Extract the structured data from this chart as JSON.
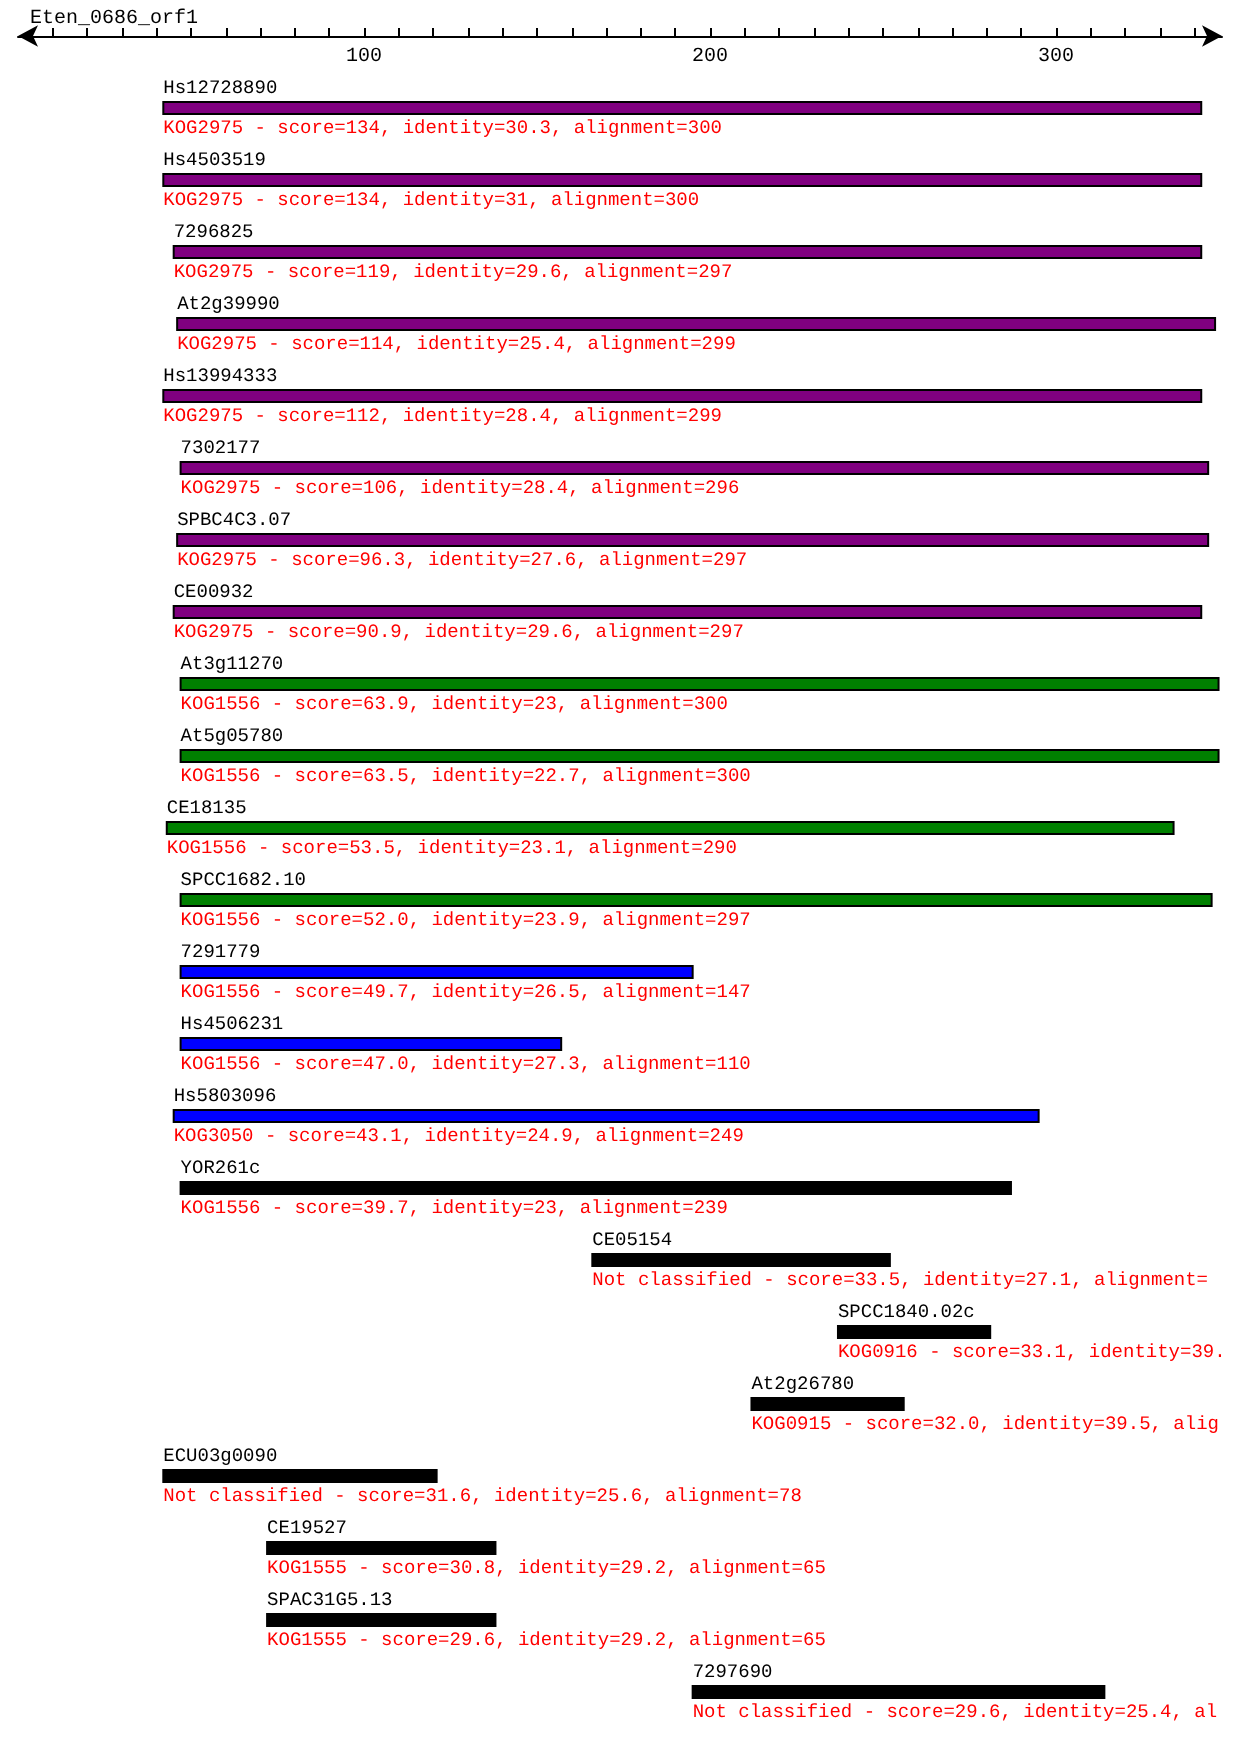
{
  "chart_data": {
    "type": "bar",
    "orientation": "horizontal",
    "title": "Eten_0686_orf1",
    "categories": [
      "Hs12728890",
      "Hs4503519",
      "7296825",
      "At2g39990",
      "Hs13994333",
      "7302177",
      "SPBC4C3.07",
      "CE00932",
      "At3g11270",
      "At5g05780",
      "CE18135",
      "SPCC1682.10",
      "7291779",
      "Hs4506231",
      "Hs5803096",
      "YOR261c",
      "CE05154",
      "SPCC1840.02c",
      "At2g26780",
      "ECU03g0090",
      "CE19527",
      "SPAC31G5.13",
      "7297690"
    ],
    "base": [
      42,
      42,
      45,
      46,
      42,
      47,
      46,
      45,
      47,
      47,
      43,
      47,
      47,
      47,
      45,
      47,
      166,
      237,
      212,
      42,
      72,
      72,
      195
    ],
    "values": [
      300,
      300,
      297,
      300,
      300,
      297,
      298,
      297,
      300,
      300,
      291,
      298,
      148,
      110,
      250,
      240,
      86,
      44,
      44,
      79,
      66,
      66,
      119
    ],
    "colors": [
      "#800080",
      "#800080",
      "#800080",
      "#800080",
      "#800080",
      "#800080",
      "#800080",
      "#800080",
      "#008000",
      "#008000",
      "#008000",
      "#008000",
      "#0000ff",
      "#0000ff",
      "#0000ff",
      "#000000",
      "#000000",
      "#000000",
      "#000000",
      "#000000",
      "#000000",
      "#000000",
      "#000000"
    ],
    "annotations": [
      "KOG2975 - score=134, identity=30.3, alignment=300",
      "KOG2975 - score=134, identity=31, alignment=300",
      "KOG2975 - score=119, identity=29.6, alignment=297",
      "KOG2975 - score=114, identity=25.4, alignment=299",
      "KOG2975 - score=112, identity=28.4, alignment=299",
      "KOG2975 - score=106, identity=28.4, alignment=296",
      "KOG2975 - score=96.3, identity=27.6, alignment=297",
      "KOG2975 - score=90.9, identity=29.6, alignment=297",
      "KOG1556 - score=63.9, identity=23, alignment=300",
      "KOG1556 - score=63.5, identity=22.7, alignment=300",
      "KOG1556 - score=53.5, identity=23.1, alignment=290",
      "KOG1556 - score=52.0, identity=23.9, alignment=297",
      "KOG1556 - score=49.7, identity=26.5, alignment=147",
      "KOG1556 - score=47.0, identity=27.3, alignment=110",
      "KOG3050 - score=43.1, identity=24.9, alignment=249",
      "KOG1556 - score=39.7, identity=23, alignment=239",
      "Not classified - score=33.5, identity=27.1, alignment=",
      "KOG0916 - score=33.1, identity=39.",
      "KOG0915 - score=32.0, identity=39.5, alig",
      "Not classified - score=31.6, identity=25.6, alignment=78",
      "KOG1555 - score=30.8, identity=29.2, alignment=65",
      "KOG1555 - score=29.6, identity=29.2, alignment=65",
      "Not classified - score=29.6, identity=25.4, al"
    ],
    "xlim": [
      0,
      348
    ],
    "xticks": [
      {
        "value": 10,
        "label": null
      },
      {
        "value": 20,
        "label": null
      },
      {
        "value": 30,
        "label": null
      },
      {
        "value": 40,
        "label": null
      },
      {
        "value": 50,
        "label": null
      },
      {
        "value": 60,
        "label": null
      },
      {
        "value": 70,
        "label": null
      },
      {
        "value": 80,
        "label": null
      },
      {
        "value": 90,
        "label": null
      },
      100,
      {
        "value": 110,
        "label": null
      },
      {
        "value": 120,
        "label": null
      },
      {
        "value": 130,
        "label": null
      },
      {
        "value": 140,
        "label": null
      },
      {
        "value": 150,
        "label": null
      },
      {
        "value": 160,
        "label": null
      },
      {
        "value": 170,
        "label": null
      },
      {
        "value": 180,
        "label": null
      },
      {
        "value": 190,
        "label": null
      },
      200,
      {
        "value": 210,
        "label": null
      },
      {
        "value": 220,
        "label": null
      },
      {
        "value": 230,
        "label": null
      },
      {
        "value": 240,
        "label": null
      },
      {
        "value": 250,
        "label": null
      },
      {
        "value": 260,
        "label": null
      },
      {
        "value": 270,
        "label": null
      },
      {
        "value": 280,
        "label": null
      },
      {
        "value": 290,
        "label": null
      },
      300,
      {
        "value": 310,
        "label": null
      },
      {
        "value": 320,
        "label": null
      },
      {
        "value": 330,
        "label": null
      },
      {
        "value": 340,
        "label": null
      }
    ],
    "grid": false
  }
}
